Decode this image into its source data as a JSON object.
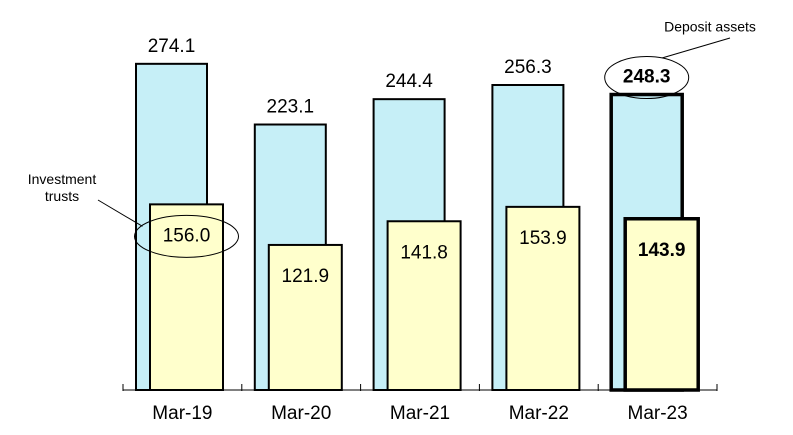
{
  "chart_data": {
    "type": "overlap-bar",
    "categories": [
      "Mar-19",
      "Mar-20",
      "Mar-21",
      "Mar-22",
      "Mar-23"
    ],
    "series": [
      {
        "name": "Deposit assets",
        "color": "#c6eff7",
        "values": [
          274.1,
          223.1,
          244.4,
          256.3,
          248.3
        ]
      },
      {
        "name": "Investment trusts",
        "color": "#ffffcc",
        "values": [
          156.0,
          121.9,
          141.8,
          153.9,
          143.9
        ],
        "value_labels": [
          "156.0",
          "121.9",
          "141.8",
          "153.9",
          "143.9"
        ]
      }
    ],
    "ylim": [
      0,
      300
    ]
  }
}
